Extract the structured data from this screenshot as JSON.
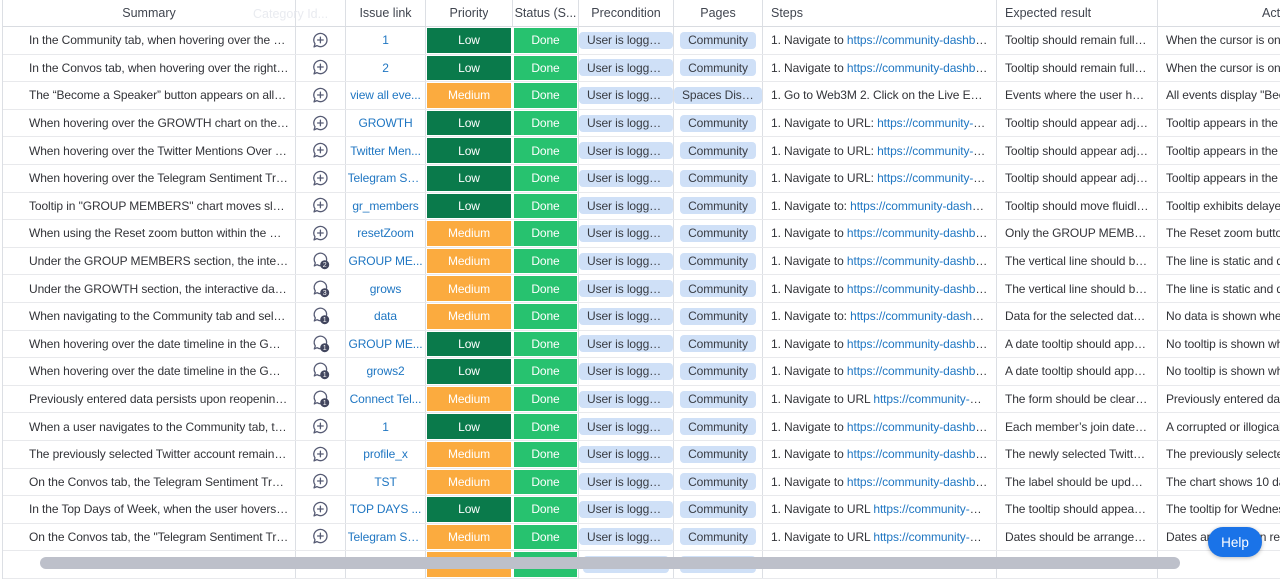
{
  "columns": [
    {
      "id": "summary",
      "label": "Summary"
    },
    {
      "id": "comments",
      "label": ""
    },
    {
      "id": "issue-link",
      "label": "Issue link"
    },
    {
      "id": "priority",
      "label": "Priority"
    },
    {
      "id": "status",
      "label": "Status (S..."
    },
    {
      "id": "precondition",
      "label": "Precondition"
    },
    {
      "id": "pages",
      "label": "Pages"
    },
    {
      "id": "steps",
      "label": "Steps"
    },
    {
      "id": "expected",
      "label": "Expected result"
    },
    {
      "id": "actual",
      "label": "Act"
    }
  ],
  "ghost_header": {
    "label": "Category Id..."
  },
  "rows": [
    {
      "summary": "In the Community tab, when hovering over the right...",
      "comment": "add",
      "issue_link": "1",
      "priority": "Low",
      "status": "Done",
      "precondition": "User is logge...",
      "pages": "Community",
      "steps_pre": "1. Navigate to ",
      "steps_link": "https://community-dashboar...",
      "expected": "Tooltip should remain fully vis...",
      "actual": "When the cursor is on th"
    },
    {
      "summary": "In the Convos tab, when hovering over the rightmos...",
      "comment": "add",
      "issue_link": "2",
      "priority": "Low",
      "status": "Done",
      "precondition": "User is logge...",
      "pages": "Community",
      "steps_pre": "1. Navigate to ",
      "steps_link": "https://community-dashboar...",
      "expected": "Tooltip should remain fully vis...",
      "actual": "When the cursor is on th"
    },
    {
      "summary": "The “Become a Speaker” button appears on all even...",
      "comment": "add",
      "issue_link": "view all eve...",
      "priority": "Medium",
      "status": "Done",
      "precondition": "User is logge...",
      "pages": "Spaces Disco...",
      "steps_pre": "1. Go to Web3M 2. Click on the Live Events ...",
      "steps_link": "",
      "expected": "Events where the user has alr...",
      "actual": "All events display \"Beco"
    },
    {
      "summary": "When hovering over the GROWTH chart on the Co...",
      "comment": "add",
      "issue_link": "GROWTH",
      "priority": "Low",
      "status": "Done",
      "precondition": "User is logge...",
      "pages": "Community",
      "steps_pre": "1. Navigate to URL: ",
      "steps_link": "https://community-dash...",
      "expected": "Tooltip should appear adjace...",
      "actual": "Tooltip appears in the to"
    },
    {
      "summary": "When hovering over the Twitter Mentions Over Tim...",
      "comment": "add",
      "issue_link": "Twitter Men...",
      "priority": "Low",
      "status": "Done",
      "precondition": "User is logge...",
      "pages": "Community",
      "steps_pre": "1. Navigate to URL: ",
      "steps_link": "https://community-dash...",
      "expected": "Tooltip should appear adjace...",
      "actual": "Tooltip appears in the to"
    },
    {
      "summary": "When hovering over the Telegram Sentiment Trend ...",
      "comment": "add",
      "issue_link": "Telegram Se...",
      "priority": "Low",
      "status": "Done",
      "precondition": "User is logge...",
      "pages": "Community",
      "steps_pre": "1. Navigate to URL: ",
      "steps_link": "https://community-dash...",
      "expected": "Tooltip should appear adjace...",
      "actual": "Tooltip appears in the to"
    },
    {
      "summary": "Tooltip in \"GROUP MEMBERS\" chart moves slowly a...",
      "comment": "add",
      "issue_link": "gr_members",
      "priority": "Low",
      "status": "Done",
      "precondition": "User is logge...",
      "pages": "Community",
      "steps_pre": "1. Navigate to: ",
      "steps_link": "https://community-dashboar...",
      "expected": "Tooltip should move fluidly in ...",
      "actual": "Tooltip exhibits delayed"
    },
    {
      "summary": "When using the Reset zoom button within the GRO...",
      "comment": "add",
      "issue_link": "resetZoom",
      "priority": "Medium",
      "status": "Done",
      "precondition": "User is logge...",
      "pages": "Community",
      "steps_pre": "1. Navigate to ",
      "steps_link": "https://community-dashboar...",
      "expected": "Only the GROUP MEMBERS ...",
      "actual": "The Reset zoom button"
    },
    {
      "summary": "Under the GROUP MEMBERS section, the interactiv...",
      "comment": 2,
      "issue_link": "GROUP ME...",
      "priority": "Medium",
      "status": "Done",
      "precondition": "User is logge...",
      "pages": "Community",
      "steps_pre": "1. Navigate to ",
      "steps_link": "https://community-dashboar...",
      "expected": "The vertical line should be dr...",
      "actual": "The line is static and do"
    },
    {
      "summary": "Under the GROWTH section, the interactive date se...",
      "comment": 3,
      "issue_link": "grows",
      "priority": "Medium",
      "status": "Done",
      "precondition": "User is logge...",
      "pages": "Community",
      "steps_pre": "1. Navigate to ",
      "steps_link": "https://community-dashboar...",
      "expected": "The vertical line should be dr...",
      "actual": "The line is static and do"
    },
    {
      "summary": "When navigating to the Community tab and selecti...",
      "comment": 1,
      "issue_link": "data",
      "priority": "Medium",
      "status": "Done",
      "precondition": "User is logge...",
      "pages": "Community",
      "steps_pre": "1. Navigate to: ",
      "steps_link": "https://community-dashboar...",
      "expected": "Data for the selected date ra...",
      "actual": "No data is shown when"
    },
    {
      "summary": "When hovering over the date timeline in the GROUP...",
      "comment": 1,
      "issue_link": "GROUP ME...",
      "priority": "Low",
      "status": "Done",
      "precondition": "User is logge...",
      "pages": "Community",
      "steps_pre": "1. Navigate to ",
      "steps_link": "https://community-dashboar...",
      "expected": "A date tooltip should appear i...",
      "actual": "No tooltip is shown whe"
    },
    {
      "summary": "When hovering over the date timeline in the GROW...",
      "comment": 1,
      "issue_link": "grows2",
      "priority": "Low",
      "status": "Done",
      "precondition": "User is logge...",
      "pages": "Community",
      "steps_pre": "1. Navigate to ",
      "steps_link": "https://community-dashboar...",
      "expected": "A date tooltip should appear i...",
      "actual": "No tooltip is shown whe"
    },
    {
      "summary": "Previously entered data persists upon reopening \"C...",
      "comment": 1,
      "issue_link": "Connect Tel...",
      "priority": "Medium",
      "status": "Done",
      "precondition": "User is logge...",
      "pages": "Community",
      "steps_pre": "1. Navigate to URL ",
      "steps_link": "https://community-dash...",
      "expected": "The form should be cleared u...",
      "actual": "Previously entered data"
    },
    {
      "summary": "When a user navigates to the Community tab, the G...",
      "comment": "add",
      "issue_link": "1",
      "priority": "Low",
      "status": "Done",
      "precondition": "User is logge...",
      "pages": "Community",
      "steps_pre": "1. Navigate to ",
      "steps_link": "https://community-dashboar...",
      "expected": "Each member’s join date sho...",
      "actual": "A corrupted or illogical v"
    },
    {
      "summary": "The previously selected Twitter account remains vis...",
      "comment": "add",
      "issue_link": "profile_x",
      "priority": "Medium",
      "status": "Done",
      "precondition": "User is logge...",
      "pages": "Community",
      "steps_pre": "1. Navigate to ",
      "steps_link": "https://community-dashboar...",
      "expected": "The newly selected Twitter a...",
      "actual": "The previously selected"
    },
    {
      "summary": "On the Convos tab, the Telegram Sentiment Trend c...",
      "comment": "add",
      "issue_link": "TST",
      "priority": "Medium",
      "status": "Done",
      "precondition": "User is logge...",
      "pages": "Community",
      "steps_pre": "1. Navigate to ",
      "steps_link": "https://community-dashboar...",
      "expected": "The label should be updated t...",
      "actual": "The chart shows 10 days"
    },
    {
      "summary": "In the Top Days of Week, when the user hovers over...",
      "comment": "add",
      "issue_link": "TOP DAYS ...",
      "priority": "Low",
      "status": "Done",
      "precondition": "User is logge...",
      "pages": "Community",
      "steps_pre": "1. Navigate to URL ",
      "steps_link": "https://community-dash...",
      "expected": "The tooltip should appear full...",
      "actual": "The tooltip for Wednesd"
    },
    {
      "summary": "On the Convos tab, the \"Telegram Sentiment Trend\"...",
      "comment": "add",
      "issue_link": "Telegram Se...",
      "priority": "Medium",
      "status": "Done",
      "precondition": "User is logge...",
      "pages": "Community",
      "steps_pre": "1. Navigate to URL ",
      "steps_link": "https://community-dash...",
      "expected": "Dates should be arranged chr...",
      "actual": "Dates are",
      "actual_suffix": "in re"
    }
  ],
  "partial_row": {
    "priority": "Medium",
    "status": "Done",
    "has_precondition_chip": true,
    "has_pages_chip": true
  },
  "help_button": {
    "label": "Help"
  },
  "colors": {
    "priority": {
      "Low": "#0a7a4b",
      "Medium": "#fbab3f"
    },
    "status": {
      "Done": "#27c26f"
    },
    "chip_bg": "#cfe0f7",
    "link": "#1f76c2",
    "help": "#1a73e8",
    "icon": "#565b74",
    "badge": "#42465e"
  }
}
